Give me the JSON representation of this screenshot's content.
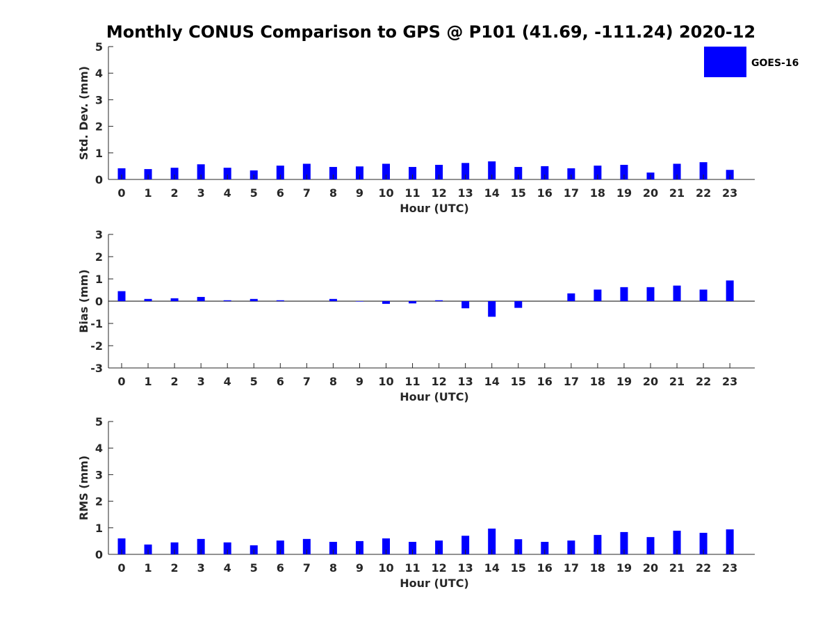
{
  "title": "Monthly CONUS Comparison to GPS @ P101 (41.69, -111.24) 2020-12",
  "legend": {
    "label": "GOES-16",
    "color": "#0000ff",
    "placement": "top-right"
  },
  "chart_data": [
    {
      "type": "bar",
      "xlabel": "Hour (UTC)",
      "ylabel": "Std. Dev. (mm)",
      "ylim": [
        0,
        5
      ],
      "yticks": [
        0,
        1,
        2,
        3,
        4,
        5
      ],
      "categories": [
        "0",
        "1",
        "2",
        "3",
        "4",
        "5",
        "6",
        "7",
        "8",
        "9",
        "10",
        "11",
        "12",
        "13",
        "14",
        "15",
        "16",
        "17",
        "18",
        "19",
        "20",
        "21",
        "22",
        "23"
      ],
      "series": [
        {
          "name": "GOES-16",
          "values": [
            0.42,
            0.39,
            0.44,
            0.57,
            0.44,
            0.34,
            0.52,
            0.59,
            0.47,
            0.49,
            0.59,
            0.47,
            0.55,
            0.62,
            0.68,
            0.47,
            0.5,
            0.42,
            0.52,
            0.55,
            0.26,
            0.59,
            0.65,
            0.36
          ]
        }
      ]
    },
    {
      "type": "bar",
      "xlabel": "Hour (UTC)",
      "ylabel": "Bias (mm)",
      "ylim": [
        -3,
        3
      ],
      "yticks": [
        -3,
        -2,
        -1,
        0,
        1,
        2,
        3
      ],
      "categories": [
        "0",
        "1",
        "2",
        "3",
        "4",
        "5",
        "6",
        "7",
        "8",
        "9",
        "10",
        "11",
        "12",
        "13",
        "14",
        "15",
        "16",
        "17",
        "18",
        "19",
        "20",
        "21",
        "22",
        "23"
      ],
      "series": [
        {
          "name": "GOES-16",
          "values": [
            0.45,
            0.1,
            0.13,
            0.19,
            0.04,
            0.1,
            0.04,
            0.0,
            0.1,
            -0.02,
            -0.12,
            -0.1,
            0.04,
            -0.32,
            -0.7,
            -0.3,
            0.0,
            0.35,
            0.52,
            0.63,
            0.63,
            0.7,
            0.52,
            0.93
          ]
        }
      ]
    },
    {
      "type": "bar",
      "xlabel": "Hour (UTC)",
      "ylabel": "RMS (mm)",
      "ylim": [
        0,
        5
      ],
      "yticks": [
        0,
        1,
        2,
        3,
        4,
        5
      ],
      "categories": [
        "0",
        "1",
        "2",
        "3",
        "4",
        "5",
        "6",
        "7",
        "8",
        "9",
        "10",
        "11",
        "12",
        "13",
        "14",
        "15",
        "16",
        "17",
        "18",
        "19",
        "20",
        "21",
        "22",
        "23"
      ],
      "series": [
        {
          "name": "GOES-16",
          "values": [
            0.6,
            0.37,
            0.45,
            0.58,
            0.45,
            0.34,
            0.52,
            0.58,
            0.47,
            0.5,
            0.6,
            0.47,
            0.52,
            0.7,
            0.97,
            0.57,
            0.47,
            0.52,
            0.73,
            0.84,
            0.65,
            0.89,
            0.81,
            0.94
          ]
        }
      ]
    }
  ]
}
